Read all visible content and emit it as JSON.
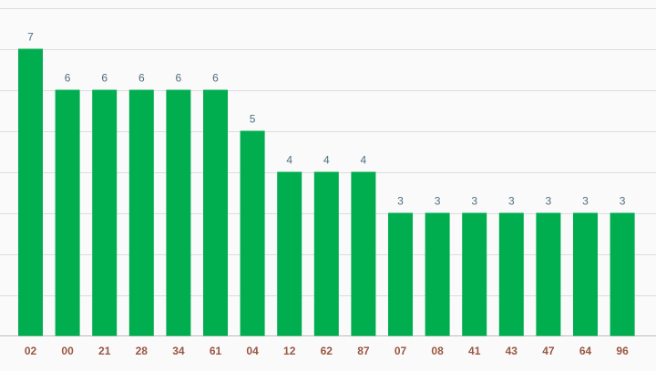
{
  "chart_data": {
    "type": "bar",
    "categories": [
      "02",
      "00",
      "21",
      "28",
      "34",
      "61",
      "04",
      "12",
      "62",
      "87",
      "07",
      "08",
      "41",
      "43",
      "47",
      "64",
      "96"
    ],
    "values": [
      7,
      6,
      6,
      6,
      6,
      6,
      5,
      4,
      4,
      4,
      3,
      3,
      3,
      3,
      3,
      3,
      3
    ],
    "title": "",
    "xlabel": "",
    "ylabel": "",
    "ylim": [
      0,
      8
    ],
    "grid": true,
    "data_labels": true,
    "colors": {
      "bar": "#00ad4f",
      "value_label": "#4e6f7f",
      "category_label": "#9a5643",
      "grid": "#dddddd",
      "background": "#fafafa"
    }
  }
}
